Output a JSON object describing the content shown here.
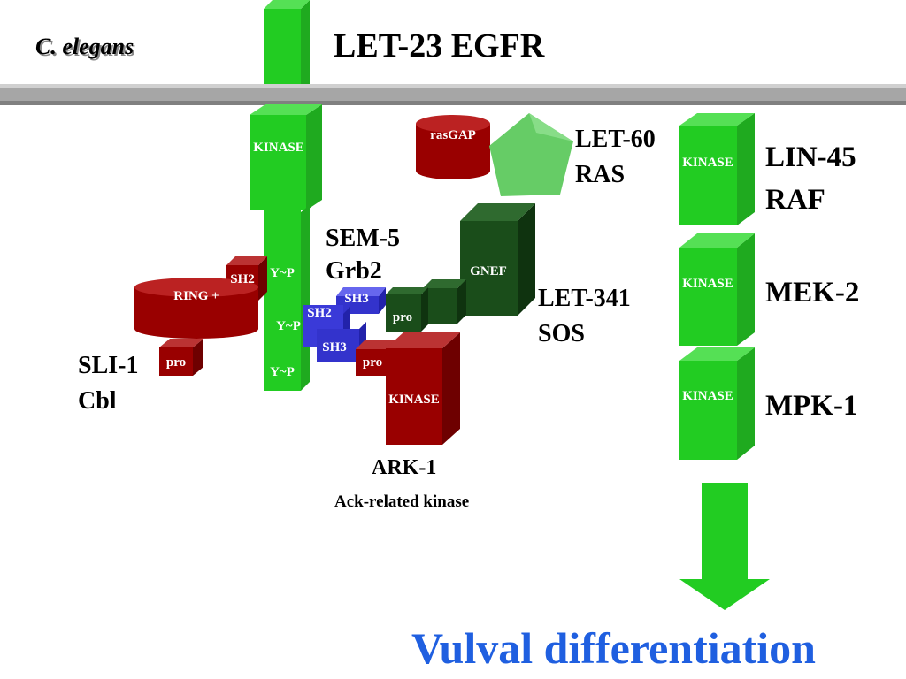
{
  "title": {
    "species": "C. elegans",
    "receptor": "LET-23 EGFR"
  },
  "proteins": {
    "let23": {
      "domains": [
        "KINASE",
        "Y~P",
        "Y~P",
        "Y~P"
      ]
    },
    "let60": {
      "name": [
        "LET-60",
        "RAS"
      ],
      "partner": "rasGAP"
    },
    "lin45": {
      "name": [
        "LIN-45",
        "RAF"
      ],
      "domain": "KINASE"
    },
    "sem5": {
      "name": [
        "SEM-5",
        "Grb2"
      ],
      "domains": [
        "SH3",
        "SH2",
        "SH3"
      ]
    },
    "let341": {
      "name": [
        "LET-341",
        "SOS"
      ],
      "domains": [
        "GNEF",
        "pro"
      ]
    },
    "sli1": {
      "name": [
        "SLI-1",
        "Cbl"
      ],
      "domains": [
        "SH2",
        "RING +",
        "pro"
      ]
    },
    "ark1": {
      "name": "ARK-1",
      "description": "Ack-related kinase",
      "domains": [
        "pro",
        "KINASE"
      ]
    },
    "mek2": {
      "name": "MEK-2",
      "domain": "KINASE"
    },
    "mpk1": {
      "name": "MPK-1",
      "domain": "KINASE"
    }
  },
  "outcome": "Vulval differentiation"
}
